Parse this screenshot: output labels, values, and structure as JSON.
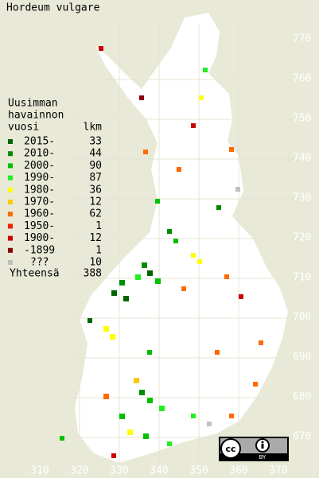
{
  "title": "Hordeum vulgare",
  "legend": {
    "heading": [
      "Uusimman",
      "havainnon",
      "vuosi"
    ],
    "count_heading": "lkm",
    "rows": [
      {
        "label": "2015-",
        "count": 33,
        "color": "#006400"
      },
      {
        "label": "2010-",
        "count": 44,
        "color": "#008c00"
      },
      {
        "label": "2000-",
        "count": 90,
        "color": "#00c000"
      },
      {
        "label": "1990-",
        "count": 87,
        "color": "#22ee22"
      },
      {
        "label": "1980-",
        "count": 36,
        "color": "#ffff00"
      },
      {
        "label": "1970-",
        "count": 12,
        "color": "#ffc800"
      },
      {
        "label": "1960-",
        "count": 62,
        "color": "#ff6a00"
      },
      {
        "label": "1950-",
        "count": 1,
        "color": "#ee2200"
      },
      {
        "label": "1900-",
        "count": 12,
        "color": "#cc0000"
      },
      {
        "label": "-1899",
        "count": 1,
        "color": "#8b0000"
      },
      {
        "label": "???",
        "count": 10,
        "color": "#c0c0c0"
      }
    ],
    "total_label": "Yhteensä",
    "total": 388
  },
  "x_labels": [
    310,
    320,
    330,
    340,
    350,
    360,
    370
  ],
  "y_labels": [
    770,
    760,
    750,
    740,
    730,
    720,
    710,
    700,
    690,
    680,
    670
  ],
  "license": "BY"
}
